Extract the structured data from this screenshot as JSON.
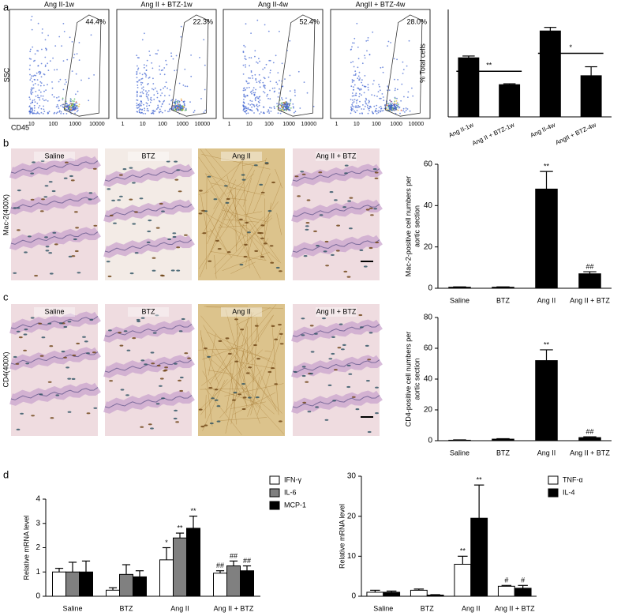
{
  "panel_labels": [
    "a",
    "b",
    "c",
    "d"
  ],
  "flow": {
    "y_label": "SSC",
    "x_label": "CD45",
    "plots": [
      {
        "title": "Ang II-1w",
        "percent": "44.4%",
        "x_ticks": [
          "10",
          "100",
          "1000",
          "10000"
        ]
      },
      {
        "title": "Ang II + BTZ-1w",
        "percent": "22.3%",
        "x_ticks": [
          "1",
          "10",
          "100",
          "1000",
          "10000"
        ]
      },
      {
        "title": "Ang II-4w",
        "percent": "52.4%",
        "x_ticks": [
          "1",
          "10",
          "100",
          "1000",
          "10000"
        ]
      },
      {
        "title": "AngII + BTZ-4w",
        "percent": "28.0%",
        "x_ticks": [
          "1",
          "10",
          "100",
          "1000",
          "10000"
        ]
      }
    ]
  },
  "histology": {
    "titles": [
      "Saline",
      "BTZ",
      "Ang II",
      "Ang II + BTZ"
    ],
    "rows": [
      "Mac-2(400X)",
      "CD4(400X)"
    ]
  },
  "chart_data": [
    {
      "type": "bar",
      "ylabel": [
        "% Total cells"
      ],
      "categories": [
        "Ang II-1w",
        "Ang II + BTZ-1w",
        "Ang II-4w",
        "AngII + BTZ-4w"
      ],
      "series": [
        {
          "name": null,
          "color": "#000000",
          "values": [
            33,
            18,
            48,
            23
          ],
          "errors": [
            1,
            0.5,
            2,
            5
          ]
        }
      ],
      "ylim": [
        0,
        60
      ],
      "comparisons": [
        {
          "categories": [
            "Ang II-1w",
            "Ang II + BTZ-1w"
          ],
          "label": "**"
        },
        {
          "categories": [
            "Ang II-4w",
            "AngII + BTZ-4w"
          ],
          "label": "*"
        }
      ]
    },
    {
      "type": "bar",
      "ylabel": [
        "Mac-2-positive cell numbers per",
        "aortic section"
      ],
      "categories": [
        "Saline",
        "BTZ",
        "Ang II",
        "Ang II + BTZ"
      ],
      "series": [
        {
          "name": null,
          "color": "#000000",
          "values": [
            0.5,
            0.5,
            48,
            7
          ],
          "errors": [
            0.2,
            0.2,
            8.5,
            1
          ],
          "annotations": [
            null,
            null,
            "**",
            "##"
          ]
        }
      ],
      "ylim": [
        0,
        60
      ],
      "yticks": [
        0,
        20,
        40,
        60
      ]
    },
    {
      "type": "bar",
      "ylabel": [
        "CD4-positive cell numbers per",
        "aortic section"
      ],
      "categories": [
        "Saline",
        "BTZ",
        "Ang II",
        "Ang II + BTZ"
      ],
      "series": [
        {
          "name": null,
          "color": "#000000",
          "values": [
            0.3,
            1,
            52,
            2
          ],
          "errors": [
            0.2,
            0.3,
            7,
            0.5
          ],
          "annotations": [
            null,
            null,
            "**",
            "##"
          ]
        }
      ],
      "ylim": [
        0,
        80
      ],
      "yticks": [
        0,
        20,
        40,
        60,
        80
      ]
    },
    {
      "type": "bar",
      "ylabel": [
        "Relative mRNA level"
      ],
      "categories": [
        "Saline",
        "BTZ",
        "Ang II",
        "Ang II + BTZ"
      ],
      "series": [
        {
          "name": "IFN-γ",
          "color": "#ffffff",
          "values": [
            1,
            0.25,
            1.5,
            0.95
          ],
          "errors": [
            0.15,
            0.1,
            0.5,
            0.1
          ],
          "annotations": [
            null,
            null,
            "*",
            "##"
          ]
        },
        {
          "name": "IL-6",
          "color": "#808080",
          "values": [
            1,
            0.9,
            2.4,
            1.25
          ],
          "errors": [
            0.4,
            0.4,
            0.2,
            0.2
          ],
          "annotations": [
            null,
            null,
            "**",
            "##"
          ]
        },
        {
          "name": "MCP-1",
          "color": "#000000",
          "values": [
            1,
            0.8,
            2.8,
            1.05
          ],
          "errors": [
            0.45,
            0.25,
            0.5,
            0.2
          ],
          "annotations": [
            null,
            null,
            "**",
            "##"
          ]
        }
      ],
      "ylim": [
        0,
        4
      ],
      "yticks": [
        0,
        1,
        2,
        3,
        4
      ],
      "legend": "upper right"
    },
    {
      "type": "bar",
      "ylabel": [
        "Relative mRNA level"
      ],
      "categories": [
        "Saline",
        "BTZ",
        "Ang II",
        "Ang II + BTZ"
      ],
      "series": [
        {
          "name": "TNF-α",
          "color": "#ffffff",
          "values": [
            1,
            1.5,
            8,
            2.5
          ],
          "errors": [
            0.5,
            0.3,
            2,
            0.2
          ],
          "annotations": [
            null,
            null,
            "**",
            "#"
          ]
        },
        {
          "name": "IL-4",
          "color": "#000000",
          "values": [
            1,
            0.3,
            19.5,
            2
          ],
          "errors": [
            0.3,
            0.1,
            8.3,
            0.7
          ],
          "annotations": [
            null,
            null,
            "**",
            "#"
          ]
        }
      ],
      "ylim": [
        0,
        30
      ],
      "yticks": [
        0,
        10,
        20,
        30
      ],
      "legend": "upper right"
    }
  ]
}
